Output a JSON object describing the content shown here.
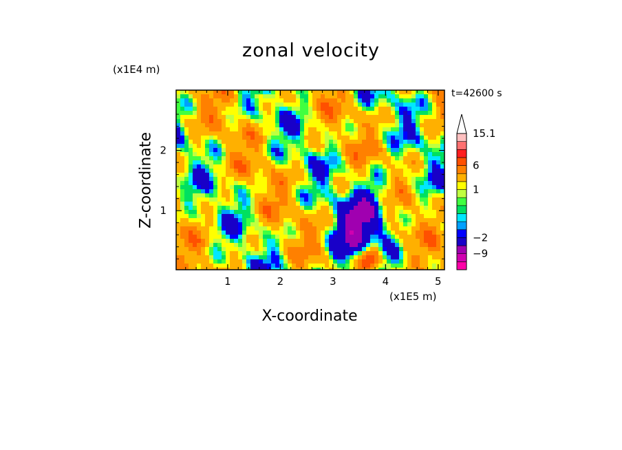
{
  "chart_data": {
    "type": "heatmap",
    "title": "zonal velocity",
    "xlabel": "X-coordinate",
    "ylabel": "Z-coordinate",
    "x_unit_label": "(x1E5 m)",
    "y_unit_label": "(x1E4 m)",
    "time_label": "t=42600 s",
    "xlim": [
      0.02,
      5.12
    ],
    "ylim": [
      0.02,
      3.0
    ],
    "x_ticks": [
      "1",
      "2",
      "3",
      "4",
      "5"
    ],
    "x_tick_values": [
      1,
      2,
      3,
      4,
      5
    ],
    "y_ticks": [
      "1",
      "2"
    ],
    "y_tick_values": [
      1,
      2
    ],
    "colorbar": {
      "levels": [
        -16,
        -12,
        -9,
        -6,
        -2,
        -1.5,
        -1,
        -0.5,
        0,
        0.5,
        1,
        2,
        4,
        6,
        8,
        10,
        12.5,
        15.1
      ],
      "colors": [
        "#ff00a8",
        "#d000b0",
        "#a000b0",
        "#1800c8",
        "#0000ff",
        "#00a0ff",
        "#00e8ff",
        "#00e060",
        "#40ff40",
        "#c0ff40",
        "#ffff00",
        "#ffb000",
        "#ff8000",
        "#ff5000",
        "#ff1e1e",
        "#ff7070",
        "#ffc0c0"
      ],
      "labels": [
        "15.1",
        "6",
        "1",
        "−2",
        "−9"
      ],
      "label_values": [
        15.1,
        6,
        1,
        -2,
        -9
      ],
      "extend": "max"
    }
  }
}
